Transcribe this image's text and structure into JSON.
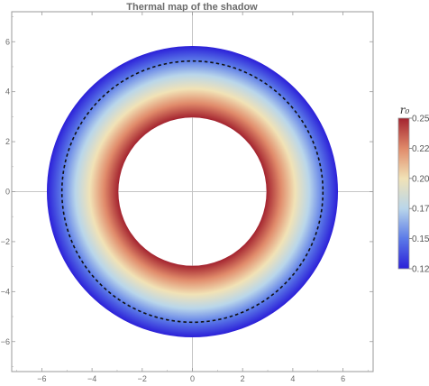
{
  "chart_data": {
    "type": "heatmap",
    "title": "Thermal map of the shadow",
    "xlabel": "",
    "ylabel": "",
    "xlim": [
      -7.2,
      7.2
    ],
    "ylim": [
      -7.2,
      7.2
    ],
    "x_ticks": [
      -6,
      -4,
      -2,
      0,
      2,
      4,
      6
    ],
    "y_ticks": [
      -6,
      -4,
      -2,
      0,
      2,
      4,
      6
    ],
    "x_tick_labels": [
      "−6",
      "−4",
      "−2",
      "0",
      "2",
      "4",
      "6"
    ],
    "y_tick_labels": [
      "−6",
      "−4",
      "−2",
      "0",
      "2",
      "4",
      "6"
    ],
    "grid": "axes lines through origin",
    "ring": {
      "inner_radius": 2.95,
      "outer_radius": 5.8,
      "value_at_inner": 0.25,
      "value_at_outer": 0.125
    },
    "contour": {
      "radius": 5.2,
      "style": "dashed",
      "color": "#111111"
    },
    "colorbar": {
      "label": "r₀",
      "range": [
        0.125,
        0.25
      ],
      "ticks": [
        0.125,
        0.15,
        0.175,
        0.2,
        0.225,
        0.25
      ],
      "tick_labels": [
        "0.125",
        "0.150",
        "0.175",
        "0.200",
        "0.225",
        "0.250"
      ],
      "placement": "right",
      "colors": [
        "#2b1fd8",
        "#5b7ae8",
        "#b9d6ea",
        "#f1e2b6",
        "#e08a6a",
        "#a3232f"
      ]
    }
  }
}
